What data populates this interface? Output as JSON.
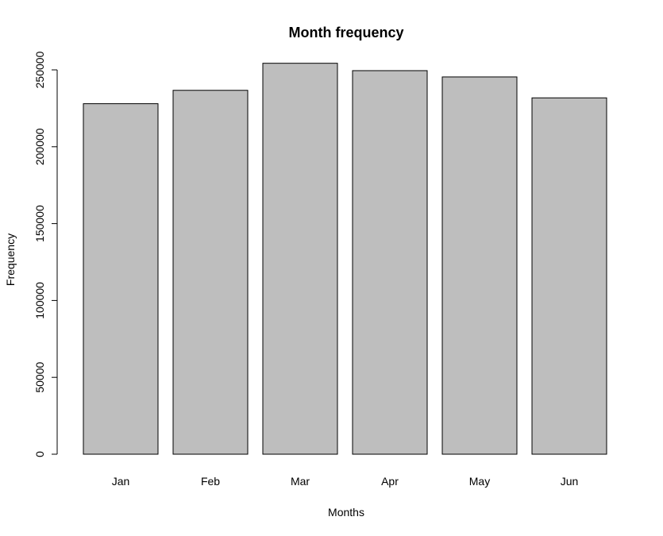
{
  "chart_data": {
    "type": "bar",
    "title": "Month frequency",
    "xlabel": "Months",
    "ylabel": "Frequency",
    "categories": [
      "Jan",
      "Feb",
      "Mar",
      "Apr",
      "May",
      "Jun"
    ],
    "values": [
      228000,
      236700,
      254300,
      249500,
      245400,
      231800
    ],
    "ylim": [
      0,
      250000
    ],
    "yticks": [
      0,
      50000,
      100000,
      150000,
      200000,
      250000
    ],
    "ytick_labels": [
      "0",
      "50000",
      "100000",
      "150000",
      "200000",
      "250000"
    ],
    "bar_color": "#bebebe",
    "grid": false,
    "legend": "none"
  }
}
